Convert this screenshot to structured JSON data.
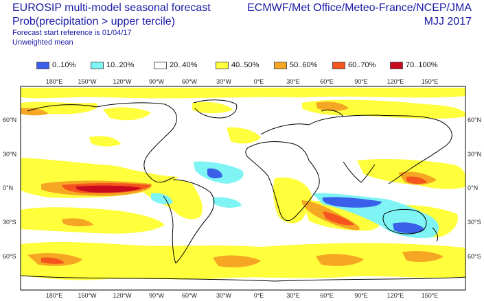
{
  "header": {
    "title_line1": "EUROSIP multi-model seasonal forecast",
    "title_line2": "Prob(precipitation > upper tercile)",
    "note_line1": "Forecast start reference is 01/04/17",
    "note_line2": "Unweighted mean",
    "centres": "ECMWF/Met Office/Meteo-France/NCEP/JMA",
    "season": "MJJ 2017"
  },
  "legend": [
    {
      "label": "0..10%",
      "color": "#3a5fe8"
    },
    {
      "label": "10..20%",
      "color": "#7ef4f4"
    },
    {
      "label": "20..40%",
      "color": "#ffffff"
    },
    {
      "label": "40..50%",
      "color": "#ffff3c"
    },
    {
      "label": "50..60%",
      "color": "#f5a623"
    },
    {
      "label": "60..70%",
      "color": "#f5541e"
    },
    {
      "label": "70..100%",
      "color": "#c80a1e"
    }
  ],
  "axes": {
    "lon_labels": [
      "180°E",
      "150°W",
      "120°W",
      "90°W",
      "60°W",
      "30°W",
      "0°E",
      "30°E",
      "60°E",
      "90°E",
      "120°E",
      "150°E"
    ],
    "lat_labels": [
      "60°N",
      "30°N",
      "0°N",
      "30°S",
      "60°S"
    ]
  }
}
